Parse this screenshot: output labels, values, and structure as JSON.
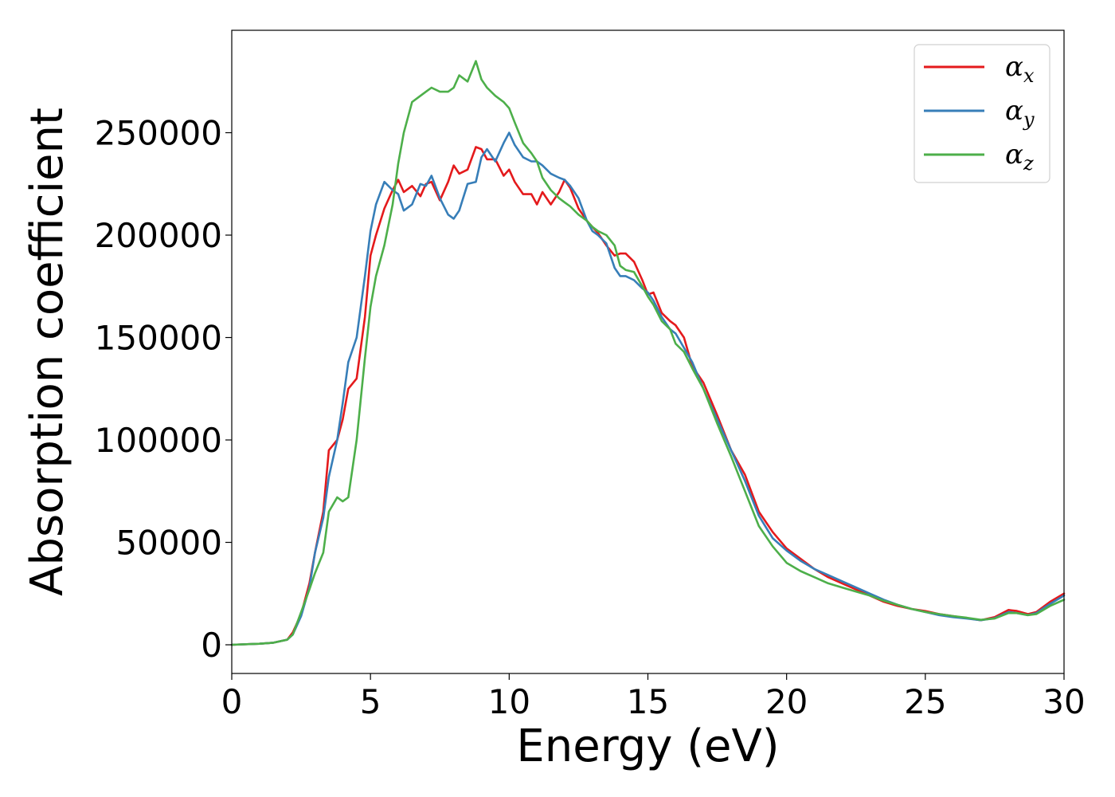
{
  "chart_data": {
    "type": "line",
    "xlabel": "Energy (eV)",
    "ylabel": "Absorption coefficient",
    "xlim": [
      0,
      30
    ],
    "ylim": [
      -14000,
      300000
    ],
    "xticks": [
      0,
      5,
      10,
      15,
      20,
      25,
      30
    ],
    "yticks": [
      0,
      50000,
      100000,
      150000,
      200000,
      250000
    ],
    "xtick_labels": [
      "0",
      "5",
      "10",
      "15",
      "20",
      "25",
      "30"
    ],
    "ytick_labels": [
      "0",
      "50000",
      "100000",
      "150000",
      "200000",
      "250000"
    ],
    "grid": false,
    "legend_position": "top-right",
    "series": [
      {
        "name": "α",
        "subscript": "x",
        "color": "#e41a1c",
        "x": [
          0,
          1,
          1.5,
          2,
          2.2,
          2.5,
          2.8,
          3,
          3.3,
          3.5,
          3.8,
          4,
          4.2,
          4.5,
          4.8,
          5,
          5.2,
          5.5,
          5.8,
          6,
          6.2,
          6.5,
          6.8,
          7,
          7.2,
          7.5,
          7.8,
          8,
          8.2,
          8.5,
          8.8,
          9,
          9.2,
          9.5,
          9.8,
          10,
          10.2,
          10.5,
          10.8,
          11,
          11.2,
          11.5,
          11.8,
          12,
          12.2,
          12.5,
          12.8,
          13,
          13.2,
          13.5,
          13.8,
          14,
          14.2,
          14.5,
          14.8,
          15,
          15.2,
          15.5,
          15.8,
          16,
          16.3,
          16.6,
          17,
          17.5,
          18,
          18.5,
          19,
          19.5,
          20,
          20.5,
          21,
          21.5,
          22,
          22.5,
          23,
          23.5,
          24,
          24.5,
          25,
          25.5,
          26,
          26.5,
          27,
          27.5,
          28,
          28.3,
          28.7,
          29,
          29.5,
          30
        ],
        "y": [
          0,
          500,
          1000,
          2500,
          6000,
          15000,
          30000,
          45000,
          65000,
          95000,
          100000,
          110000,
          125000,
          130000,
          160000,
          190000,
          200000,
          213000,
          222000,
          227000,
          221000,
          224000,
          219000,
          225000,
          226000,
          217000,
          226000,
          234000,
          230000,
          232000,
          243000,
          242000,
          237000,
          237000,
          229000,
          232000,
          226000,
          220000,
          220000,
          215000,
          221000,
          215000,
          221000,
          227000,
          223000,
          213000,
          207000,
          204000,
          201000,
          195000,
          190000,
          191000,
          191000,
          187000,
          178000,
          171000,
          172000,
          162000,
          158000,
          156000,
          150000,
          136000,
          128000,
          112000,
          95000,
          83000,
          65000,
          55000,
          47000,
          42000,
          37000,
          33000,
          30000,
          27000,
          24000,
          21000,
          19000,
          17500,
          16500,
          15000,
          14000,
          13000,
          12000,
          13500,
          17000,
          16500,
          15000,
          16000,
          21000,
          25000
        ]
      },
      {
        "name": "α",
        "subscript": "y",
        "color": "#377eb8",
        "x": [
          0,
          1,
          1.5,
          2,
          2.2,
          2.5,
          2.8,
          3,
          3.3,
          3.5,
          3.8,
          4,
          4.2,
          4.5,
          4.8,
          5,
          5.2,
          5.5,
          5.8,
          6,
          6.2,
          6.5,
          6.8,
          7,
          7.2,
          7.5,
          7.8,
          8,
          8.2,
          8.5,
          8.8,
          9,
          9.2,
          9.5,
          9.8,
          10,
          10.2,
          10.5,
          10.8,
          11,
          11.2,
          11.5,
          11.8,
          12,
          12.2,
          12.5,
          12.8,
          13,
          13.2,
          13.5,
          13.8,
          14,
          14.2,
          14.5,
          14.8,
          15,
          15.2,
          15.5,
          15.8,
          16,
          16.3,
          16.6,
          17,
          17.5,
          18,
          18.5,
          19,
          19.5,
          20,
          20.5,
          21,
          21.5,
          22,
          22.5,
          23,
          23.5,
          24,
          24.5,
          25,
          25.5,
          26,
          26.5,
          27,
          27.5,
          28,
          28.3,
          28.7,
          29,
          29.5,
          30
        ],
        "y": [
          0,
          500,
          1000,
          2500,
          5000,
          14000,
          28000,
          45000,
          62000,
          82000,
          100000,
          118000,
          138000,
          150000,
          180000,
          202000,
          215000,
          226000,
          222000,
          220000,
          212000,
          215000,
          225000,
          224000,
          229000,
          218000,
          210000,
          208000,
          212000,
          225000,
          226000,
          238000,
          242000,
          236000,
          245000,
          250000,
          244000,
          238000,
          236000,
          236000,
          234000,
          230000,
          228000,
          227000,
          224000,
          218000,
          207000,
          202000,
          200000,
          196000,
          184000,
          180000,
          180000,
          178000,
          174000,
          172000,
          168000,
          160000,
          154000,
          152000,
          145000,
          138000,
          125000,
          110000,
          95000,
          80000,
          63000,
          52000,
          46000,
          41000,
          37000,
          34000,
          31000,
          28000,
          25000,
          22000,
          19500,
          17500,
          16000,
          14500,
          13500,
          12800,
          12000,
          13000,
          16000,
          15500,
          14500,
          15500,
          20000,
          24000
        ]
      },
      {
        "name": "α",
        "subscript": "z",
        "color": "#4daf4a",
        "x": [
          0,
          1,
          1.5,
          2,
          2.2,
          2.5,
          2.8,
          3,
          3.3,
          3.5,
          3.8,
          4,
          4.2,
          4.5,
          4.8,
          5,
          5.2,
          5.5,
          5.8,
          6,
          6.2,
          6.5,
          6.8,
          7,
          7.2,
          7.5,
          7.8,
          8,
          8.2,
          8.5,
          8.8,
          9,
          9.2,
          9.5,
          9.8,
          10,
          10.2,
          10.5,
          10.8,
          11,
          11.2,
          11.5,
          11.8,
          12,
          12.2,
          12.5,
          12.8,
          13,
          13.2,
          13.5,
          13.8,
          14,
          14.2,
          14.5,
          14.8,
          15,
          15.2,
          15.5,
          15.8,
          16,
          16.3,
          16.6,
          17,
          17.5,
          18,
          18.5,
          19,
          19.5,
          20,
          20.5,
          21,
          21.5,
          22,
          22.5,
          23,
          23.5,
          24,
          24.5,
          25,
          25.5,
          26,
          26.5,
          27,
          27.5,
          28,
          28.3,
          28.7,
          29,
          29.5,
          30
        ],
        "y": [
          0,
          500,
          1000,
          2500,
          5000,
          16000,
          27000,
          35000,
          45000,
          65000,
          72000,
          70000,
          72000,
          100000,
          140000,
          165000,
          180000,
          195000,
          215000,
          235000,
          250000,
          265000,
          268000,
          270000,
          272000,
          270000,
          270000,
          272000,
          278000,
          275000,
          285000,
          276000,
          272000,
          268000,
          265000,
          262000,
          255000,
          245000,
          240000,
          236000,
          228000,
          222000,
          218000,
          216000,
          214000,
          210000,
          207000,
          204000,
          202000,
          200000,
          195000,
          185000,
          183000,
          182000,
          175000,
          170000,
          166000,
          158000,
          154000,
          147000,
          143000,
          135000,
          125000,
          108000,
          92000,
          75000,
          58000,
          48000,
          40000,
          36000,
          33000,
          30000,
          28000,
          26000,
          24000,
          21500,
          19500,
          17500,
          16000,
          15000,
          14000,
          13200,
          12200,
          12800,
          15500,
          15500,
          14500,
          15000,
          19000,
          22000
        ]
      }
    ]
  }
}
